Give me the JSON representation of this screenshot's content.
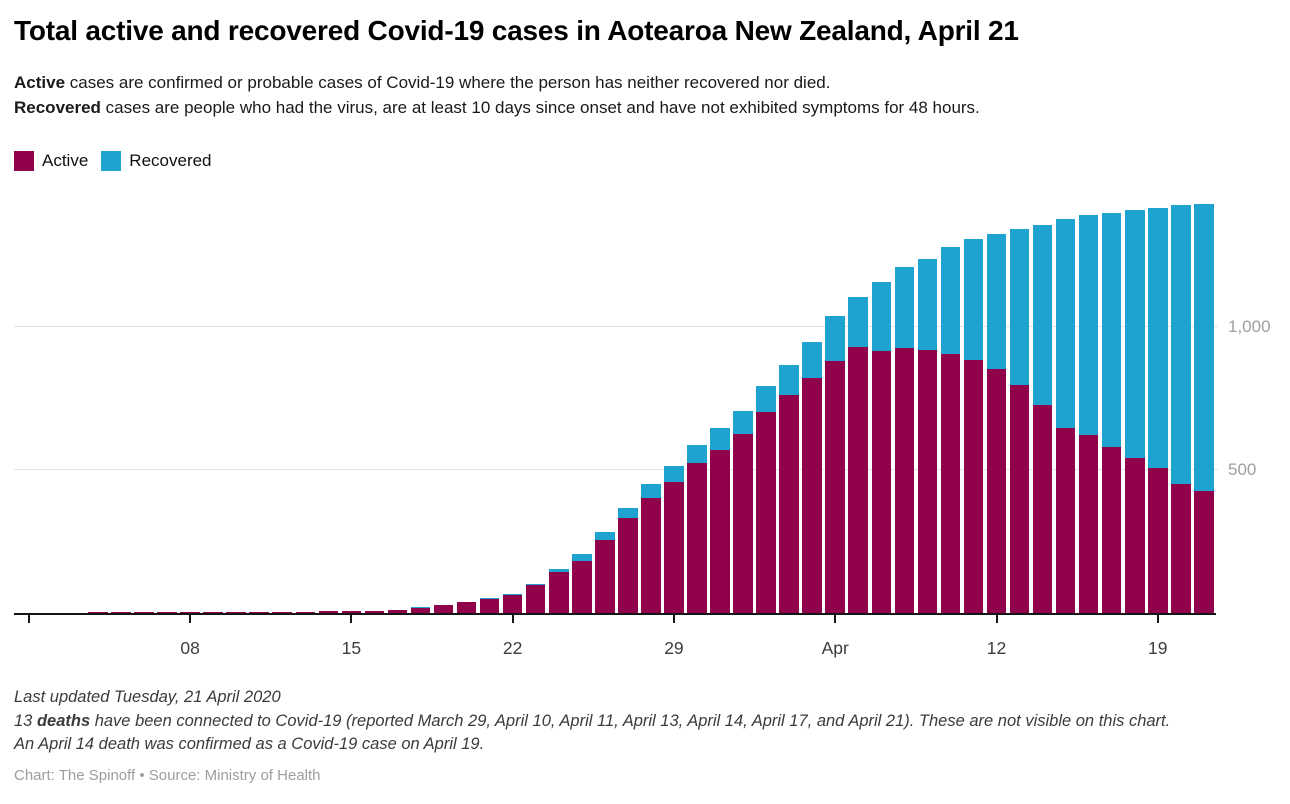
{
  "header": {
    "title": "Total active and recovered Covid-19 cases in Aotearoa New Zealand, April 21",
    "description_lines": [
      {
        "bold": "Active",
        "rest": " cases are confirmed or probable cases of Covid-19 where the person has neither recovered nor died."
      },
      {
        "bold": "Recovered",
        "rest": " cases are people who had the virus, are at least 10 days since onset and have not exhibited symptoms for 48 hours."
      }
    ]
  },
  "legend": {
    "items": [
      {
        "label": "Active",
        "color": "#90024a"
      },
      {
        "label": "Recovered",
        "color": "#1ea3d1"
      }
    ]
  },
  "chart_data": {
    "type": "bar",
    "stacked": true,
    "title": "Total active and recovered Covid-19 cases in Aotearoa New Zealand, April 21",
    "xlabel": "",
    "ylabel": "",
    "grid": true,
    "legend_position": "top-left",
    "ylim": [
      0,
      1480
    ],
    "y_ticks": [
      {
        "value": 500,
        "label": "500"
      },
      {
        "value": 1000,
        "label": "1,000"
      }
    ],
    "x_ticks": [
      {
        "index": 0,
        "label": ""
      },
      {
        "index": 7,
        "label": "08"
      },
      {
        "index": 14,
        "label": "15"
      },
      {
        "index": 21,
        "label": "22"
      },
      {
        "index": 28,
        "label": "29"
      },
      {
        "index": 35,
        "label": "Apr"
      },
      {
        "index": 42,
        "label": "12"
      },
      {
        "index": 49,
        "label": "19"
      }
    ],
    "categories": [
      "Mar 1",
      "Mar 2",
      "Mar 3",
      "Mar 4",
      "Mar 5",
      "Mar 6",
      "Mar 7",
      "Mar 8",
      "Mar 9",
      "Mar 10",
      "Mar 11",
      "Mar 12",
      "Mar 13",
      "Mar 14",
      "Mar 15",
      "Mar 16",
      "Mar 17",
      "Mar 18",
      "Mar 19",
      "Mar 20",
      "Mar 21",
      "Mar 22",
      "Mar 23",
      "Mar 24",
      "Mar 25",
      "Mar 26",
      "Mar 27",
      "Mar 28",
      "Mar 29",
      "Mar 30",
      "Mar 31",
      "Apr 1",
      "Apr 2",
      "Apr 3",
      "Apr 4",
      "Apr 5",
      "Apr 6",
      "Apr 7",
      "Apr 8",
      "Apr 9",
      "Apr 10",
      "Apr 11",
      "Apr 12",
      "Apr 13",
      "Apr 14",
      "Apr 15",
      "Apr 16",
      "Apr 17",
      "Apr 18",
      "Apr 19",
      "Apr 20",
      "Apr 21"
    ],
    "series": [
      {
        "name": "Active",
        "color": "#90024a",
        "values": [
          1,
          1,
          1,
          2,
          3,
          4,
          5,
          5,
          5,
          5,
          5,
          5,
          5,
          6,
          8,
          8,
          11,
          19,
          27,
          37,
          50,
          62,
          98,
          143,
          183,
          256,
          331,
          401,
          457,
          525,
          572,
          625,
          704,
          764,
          822,
          882,
          929,
          918,
          927,
          921,
          906,
          886,
          854,
          798,
          729,
          649,
          622,
          582,
          544,
          506,
          453,
          426
        ]
      },
      {
        "name": "Recovered",
        "color": "#1ea3d1",
        "values": [
          0,
          0,
          0,
          0,
          0,
          0,
          0,
          0,
          0,
          0,
          0,
          0,
          0,
          0,
          0,
          0,
          1,
          1,
          1,
          2,
          2,
          4,
          4,
          12,
          22,
          27,
          37,
          50,
          56,
          63,
          74,
          82,
          92,
          103,
          127,
          156,
          176,
          241,
          282,
          317,
          373,
          422,
          471,
          546,
          628,
          728,
          770,
          816,
          867,
          912,
          974,
          1006
        ]
      }
    ]
  },
  "footer": {
    "line1": "Last updated Tuesday, 21 April 2020",
    "line2_prefix": "13 ",
    "line2_bold": "deaths",
    "line2_rest": " have been connected to Covid-19 (reported March 29, April 10, April 11, April 13, April 14, April 17, and April 21). These are not visible on this chart.",
    "line3": "An April 14 death was confirmed as a Covid-19 case on April 19.",
    "source": "Chart: The Spinoff • Source: Ministry of Health"
  }
}
